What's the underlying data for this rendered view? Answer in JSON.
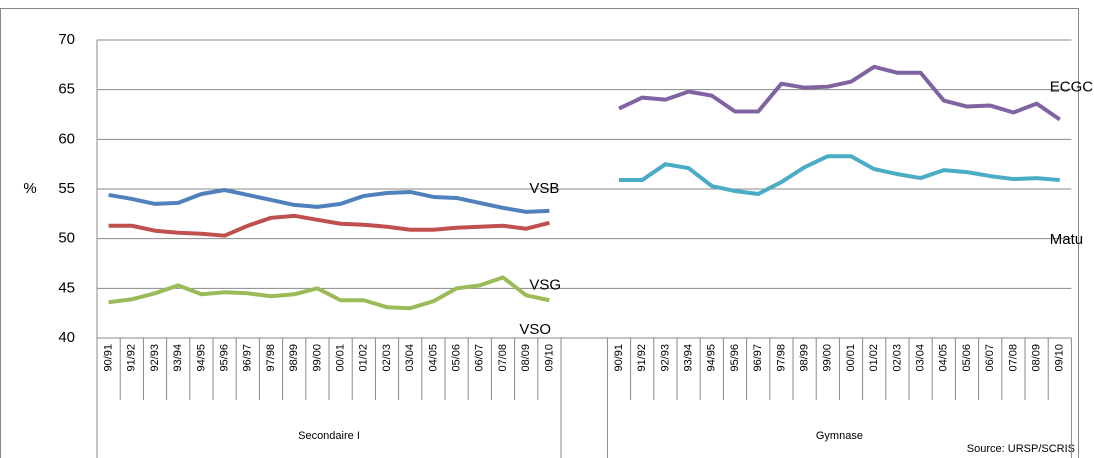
{
  "chart_data": {
    "type": "line",
    "ylabel": "%",
    "source": "Source: URSP/SCRIS",
    "groups": [
      {
        "label": "Secondaire I",
        "categories": [
          "90/91",
          "91/92",
          "92/93",
          "93/94",
          "94/95",
          "95/96",
          "96/97",
          "97/98",
          "98/99",
          "99/00",
          "00/01",
          "01/02",
          "02/03",
          "03/04",
          "04/05",
          "05/06",
          "06/07",
          "07/08",
          "08/09",
          "09/10"
        ]
      },
      {
        "label": "Gymnase",
        "categories": [
          "90/91",
          "91/92",
          "92/93",
          "93/94",
          "94/95",
          "95/96",
          "96/97",
          "97/98",
          "98/99",
          "99/00",
          "00/01",
          "01/02",
          "02/03",
          "03/04",
          "04/05",
          "05/06",
          "06/07",
          "07/08",
          "08/09",
          "09/10"
        ]
      }
    ],
    "series": [
      {
        "name": "VSB",
        "color": "#4f81bd",
        "values": [
          [
            54.4,
            54.0,
            53.5,
            53.6,
            54.5,
            54.9,
            54.4,
            53.9,
            53.4,
            53.2,
            53.5,
            54.3,
            54.6,
            54.7,
            54.2,
            54.1,
            53.6,
            53.1,
            52.7,
            52.8
          ],
          null
        ]
      },
      {
        "name": "VSG",
        "color": "#c0504d",
        "values": [
          [
            51.3,
            51.3,
            50.8,
            50.6,
            50.5,
            50.3,
            51.3,
            52.1,
            52.3,
            51.9,
            51.5,
            51.4,
            51.2,
            50.9,
            50.9,
            51.1,
            51.2,
            51.3,
            51.0,
            51.6
          ],
          null
        ]
      },
      {
        "name": "VSO",
        "color": "#9bbb59",
        "values": [
          [
            43.6,
            43.9,
            44.5,
            45.3,
            44.4,
            44.6,
            44.5,
            44.2,
            44.4,
            45.0,
            43.8,
            43.8,
            43.1,
            43.0,
            43.7,
            45.0,
            45.3,
            46.1,
            44.3,
            43.8
          ],
          null
        ]
      },
      {
        "name": "ECGC",
        "color": "#8064a2",
        "values": [
          null,
          [
            63.1,
            64.2,
            64.0,
            64.8,
            64.4,
            62.8,
            62.8,
            65.6,
            65.2,
            65.3,
            65.8,
            67.3,
            66.7,
            66.7,
            63.9,
            63.3,
            63.4,
            62.7,
            63.6,
            62.0
          ]
        ]
      },
      {
        "name": "Matu",
        "color": "#4bacc6",
        "values": [
          null,
          [
            55.9,
            55.9,
            57.5,
            57.1,
            55.3,
            54.8,
            54.5,
            55.7,
            57.2,
            58.3,
            58.3,
            57.0,
            56.5,
            56.1,
            56.9,
            56.7,
            56.3,
            56.0,
            56.1,
            55.9
          ]
        ]
      }
    ],
    "ylim": [
      40,
      70
    ],
    "yticks": [
      40,
      45,
      50,
      55,
      60,
      65,
      70
    ],
    "grid": true
  }
}
